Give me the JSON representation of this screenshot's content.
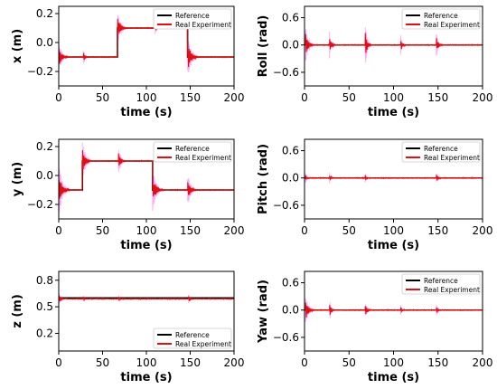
{
  "figure": {
    "legend_items": [
      {
        "label": "Reference",
        "color": "#000000"
      },
      {
        "label": "Real Experiment",
        "color": "#e01010"
      }
    ],
    "noise_color": "#ff00ff"
  },
  "chart_data": [
    {
      "type": "line",
      "panel": "x",
      "xlabel": "time (s)",
      "ylabel": "x (m)",
      "xlim": [
        0,
        200
      ],
      "ylim": [
        -0.3,
        0.25
      ],
      "xticks": [
        0,
        50,
        100,
        150,
        200
      ],
      "xtick_labels": [
        "0",
        "50",
        "100",
        "150",
        "200"
      ],
      "yticks": [
        -0.2,
        0.0,
        0.2
      ],
      "ytick_labels": [
        "−0.2",
        "0.0",
        "0.2"
      ],
      "legend_position": "top-right",
      "series": [
        {
          "name": "Reference",
          "color": "#000000",
          "x": [
            0,
            67,
            67,
            147,
            147,
            200
          ],
          "y": [
            -0.1,
            -0.1,
            0.1,
            0.1,
            -0.1,
            -0.1
          ]
        },
        {
          "name": "Real Experiment",
          "color": "#e01010",
          "x": [
            0,
            67,
            67,
            147,
            147,
            200
          ],
          "y": [
            -0.1,
            -0.1,
            0.1,
            0.1,
            -0.1,
            -0.1
          ]
        }
      ],
      "transients": [
        {
          "t": 0,
          "amp": 0.08,
          "dur": 10
        },
        {
          "t": 28,
          "amp": 0.04,
          "dur": 6
        },
        {
          "t": 67,
          "amp": 0.09,
          "dur": 10
        },
        {
          "t": 110,
          "amp": 0.03,
          "dur": 5
        },
        {
          "t": 147,
          "amp": 0.1,
          "dur": 12
        }
      ]
    },
    {
      "type": "line",
      "panel": "roll",
      "xlabel": "time (s)",
      "ylabel": "Roll (rad)",
      "xlim": [
        0,
        200
      ],
      "ylim": [
        -0.9,
        0.85
      ],
      "xticks": [
        0,
        50,
        100,
        150,
        200
      ],
      "xtick_labels": [
        "0",
        "50",
        "100",
        "150",
        "200"
      ],
      "yticks": [
        -0.6,
        0.0,
        0.6
      ],
      "ytick_labels": [
        "−0.6",
        "0.0",
        "0.6"
      ],
      "legend_position": "top-right",
      "series": [
        {
          "name": "Reference",
          "color": "#000000",
          "x": [
            0,
            200
          ],
          "y": [
            0,
            0
          ]
        },
        {
          "name": "Real Experiment",
          "color": "#e01010",
          "x": [
            0,
            200
          ],
          "y": [
            0,
            0
          ]
        }
      ],
      "transients": [
        {
          "t": 1,
          "amp": 0.3,
          "dur": 10
        },
        {
          "t": 28,
          "amp": 0.2,
          "dur": 7
        },
        {
          "t": 68,
          "amp": 0.35,
          "dur": 7
        },
        {
          "t": 108,
          "amp": 0.15,
          "dur": 6
        },
        {
          "t": 148,
          "amp": 0.2,
          "dur": 7
        }
      ]
    },
    {
      "type": "line",
      "panel": "y",
      "xlabel": "time (s)",
      "ylabel": "y (m)",
      "xlim": [
        0,
        200
      ],
      "ylim": [
        -0.3,
        0.25
      ],
      "xticks": [
        0,
        50,
        100,
        150,
        200
      ],
      "xtick_labels": [
        "0",
        "50",
        "100",
        "150",
        "200"
      ],
      "yticks": [
        -0.2,
        0.0,
        0.2
      ],
      "ytick_labels": [
        "−0.2",
        "0.0",
        "0.2"
      ],
      "legend_position": "top-right",
      "series": [
        {
          "name": "Reference",
          "color": "#000000",
          "x": [
            0,
            27,
            27,
            107,
            107,
            200
          ],
          "y": [
            -0.1,
            -0.1,
            0.1,
            0.1,
            -0.1,
            -0.1
          ]
        },
        {
          "name": "Real Experiment",
          "color": "#e01010",
          "x": [
            0,
            27,
            27,
            107,
            107,
            200
          ],
          "y": [
            -0.1,
            -0.1,
            0.1,
            0.1,
            -0.1,
            -0.1
          ]
        }
      ],
      "transients": [
        {
          "t": 0,
          "amp": 0.12,
          "dur": 12
        },
        {
          "t": 27,
          "amp": 0.1,
          "dur": 10
        },
        {
          "t": 68,
          "amp": 0.07,
          "dur": 8
        },
        {
          "t": 107,
          "amp": 0.1,
          "dur": 12
        },
        {
          "t": 147,
          "amp": 0.08,
          "dur": 10
        }
      ]
    },
    {
      "type": "line",
      "panel": "pitch",
      "xlabel": "time (s)",
      "ylabel": "Pitch (rad)",
      "xlim": [
        0,
        200
      ],
      "ylim": [
        -0.9,
        0.85
      ],
      "xticks": [
        0,
        50,
        100,
        150,
        200
      ],
      "xtick_labels": [
        "0",
        "50",
        "100",
        "150",
        "200"
      ],
      "yticks": [
        -0.6,
        0.0,
        0.6
      ],
      "ytick_labels": [
        "−0.6",
        "0.0",
        "0.6"
      ],
      "legend_position": "top-right",
      "series": [
        {
          "name": "Reference",
          "color": "#000000",
          "x": [
            0,
            200
          ],
          "y": [
            0,
            0
          ]
        },
        {
          "name": "Real Experiment",
          "color": "#e01010",
          "x": [
            0,
            200
          ],
          "y": [
            0,
            0
          ]
        }
      ],
      "transients": [
        {
          "t": 1,
          "amp": 0.08,
          "dur": 6
        },
        {
          "t": 28,
          "amp": 0.08,
          "dur": 5
        },
        {
          "t": 68,
          "amp": 0.08,
          "dur": 5
        },
        {
          "t": 148,
          "amp": 0.1,
          "dur": 6
        }
      ]
    },
    {
      "type": "line",
      "panel": "z",
      "xlabel": "time (s)",
      "ylabel": "z (m)",
      "xlim": [
        0,
        200
      ],
      "ylim": [
        0.0,
        0.9
      ],
      "xticks": [
        0,
        50,
        100,
        150,
        200
      ],
      "xtick_labels": [
        "0",
        "50",
        "100",
        "150",
        "200"
      ],
      "yticks": [
        0.2,
        0.5,
        0.8
      ],
      "ytick_labels": [
        "0.2",
        "0.5",
        "0.8"
      ],
      "legend_position": "bottom-right",
      "series": [
        {
          "name": "Reference",
          "color": "#000000",
          "x": [
            0,
            200
          ],
          "y": [
            0.6,
            0.6
          ]
        },
        {
          "name": "Real Experiment",
          "color": "#e01010",
          "x": [
            0,
            200
          ],
          "y": [
            0.59,
            0.59
          ]
        }
      ],
      "transients": [
        {
          "t": 0,
          "amp": 0.05,
          "dur": 8
        },
        {
          "t": 28,
          "amp": 0.03,
          "dur": 5
        },
        {
          "t": 68,
          "amp": 0.03,
          "dur": 5
        },
        {
          "t": 148,
          "amp": 0.04,
          "dur": 6
        }
      ]
    },
    {
      "type": "line",
      "panel": "yaw",
      "xlabel": "time (s)",
      "ylabel": "Yaw (rad)",
      "xlim": [
        0,
        200
      ],
      "ylim": [
        -0.9,
        0.85
      ],
      "xticks": [
        0,
        50,
        100,
        150,
        200
      ],
      "xtick_labels": [
        "0",
        "50",
        "100",
        "150",
        "200"
      ],
      "yticks": [
        -0.6,
        0.0,
        0.6
      ],
      "ytick_labels": [
        "−0.6",
        "0.0",
        "0.6"
      ],
      "legend_position": "top-right",
      "series": [
        {
          "name": "Reference",
          "color": "#000000",
          "x": [
            0,
            200
          ],
          "y": [
            0,
            0
          ]
        },
        {
          "name": "Real Experiment",
          "color": "#e01010",
          "x": [
            0,
            200
          ],
          "y": [
            0,
            0
          ]
        }
      ],
      "transients": [
        {
          "t": 1,
          "amp": 0.25,
          "dur": 10
        },
        {
          "t": 28,
          "amp": 0.18,
          "dur": 6
        },
        {
          "t": 68,
          "amp": 0.15,
          "dur": 6
        },
        {
          "t": 108,
          "amp": 0.08,
          "dur": 5
        },
        {
          "t": 148,
          "amp": 0.1,
          "dur": 6
        }
      ]
    }
  ]
}
